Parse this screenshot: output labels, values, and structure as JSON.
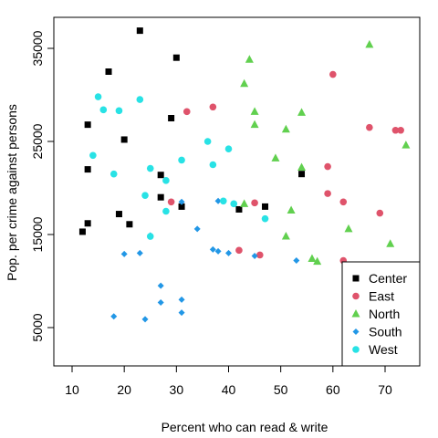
{
  "chart_data": {
    "type": "scatter",
    "title": "",
    "xlabel": "Percent who can read & write",
    "ylabel": "Pop. per crime against persons",
    "xlim": [
      10,
      75
    ],
    "ylim": [
      1000,
      38000
    ],
    "x_ticks": [
      10,
      20,
      30,
      40,
      50,
      60,
      70
    ],
    "y_ticks": [
      5000,
      15000,
      25000,
      35000
    ],
    "grid": false,
    "legend_position": "bottom-right",
    "series": [
      {
        "name": "Center",
        "color": "#000000",
        "marker": "square",
        "x": [
          12,
          13,
          13,
          13,
          17,
          19,
          20,
          21,
          23,
          27,
          27,
          29,
          30,
          31,
          42,
          47,
          54
        ],
        "y": [
          15300,
          16200,
          22000,
          26800,
          32500,
          17200,
          25200,
          16100,
          36900,
          21400,
          19000,
          27500,
          34000,
          18000,
          17700,
          18000,
          21500
        ]
      },
      {
        "name": "East",
        "color": "#DF536B",
        "marker": "circle",
        "x": [
          29,
          32,
          37,
          42,
          45,
          46,
          59,
          59,
          60,
          62,
          62,
          67,
          69,
          72,
          73
        ],
        "y": [
          18500,
          28200,
          28700,
          13300,
          18400,
          12800,
          22300,
          19400,
          32200,
          18500,
          12200,
          26500,
          17300,
          26200,
          26200
        ]
      },
      {
        "name": "North",
        "color": "#61D04F",
        "marker": "triangle",
        "x": [
          43,
          43,
          44,
          45,
          45,
          49,
          51,
          51,
          52,
          54,
          54,
          56,
          57,
          63,
          67,
          71,
          74
        ],
        "y": [
          18300,
          31200,
          33800,
          28200,
          26800,
          23200,
          26300,
          14800,
          17600,
          28100,
          22200,
          12400,
          12100,
          15600,
          35400,
          14000,
          24600
        ]
      },
      {
        "name": "South",
        "color": "#2297E6",
        "marker": "diamond",
        "x": [
          18,
          20,
          23,
          24,
          25,
          27,
          27,
          31,
          31,
          31,
          34,
          37,
          38,
          38,
          40,
          45,
          53
        ],
        "y": [
          6200,
          12900,
          13000,
          5900,
          14900,
          9500,
          7700,
          8000,
          6600,
          18500,
          15600,
          13400,
          13200,
          18600,
          13000,
          12700,
          12200
        ]
      },
      {
        "name": "West",
        "color": "#28E2E5",
        "marker": "circle",
        "x": [
          14,
          15,
          16,
          18,
          19,
          23,
          24,
          25,
          25,
          28,
          28,
          31,
          36,
          37,
          39,
          40,
          41,
          47
        ],
        "y": [
          23500,
          29800,
          28400,
          21500,
          28300,
          29500,
          19200,
          22100,
          14800,
          20800,
          17500,
          23000,
          25000,
          22500,
          18600,
          24200,
          18300,
          16700
        ]
      }
    ]
  }
}
